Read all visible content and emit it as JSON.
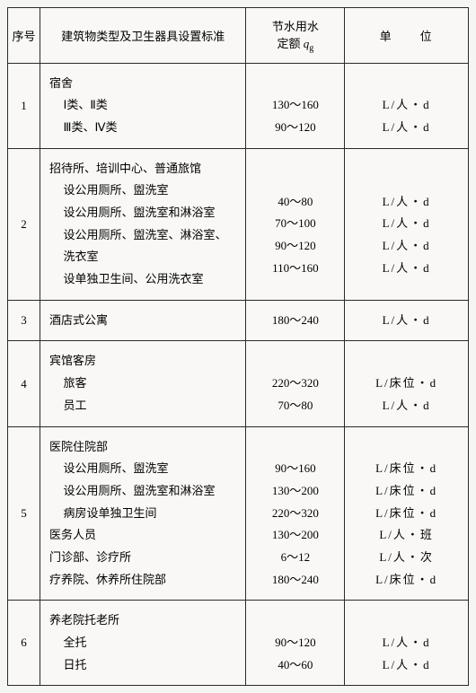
{
  "header": {
    "seq": "序号",
    "desc": "建筑物类型及卫生器具设置标准",
    "val_line1": "节水用水",
    "val_line2_prefix": "定额 ",
    "val_q": "q",
    "val_g": "g",
    "unit": "单　　位"
  },
  "rows": [
    {
      "seq": "1",
      "desc_head": "宿舍",
      "subs": [
        {
          "label": "Ⅰ类、Ⅱ类",
          "val": "130～160",
          "unit": "L/人・d"
        },
        {
          "label": "Ⅲ类、Ⅳ类",
          "val": "90～120",
          "unit": "L/人・d"
        }
      ]
    },
    {
      "seq": "2",
      "desc_head": "招待所、培训中心、普通旅馆",
      "subs": [
        {
          "label": "设公用厕所、盥洗室",
          "val": "40～80",
          "unit": "L/人・d"
        },
        {
          "label": "设公用厕所、盥洗室和淋浴室",
          "val": "70～100",
          "unit": "L/人・d"
        },
        {
          "label": "设公用厕所、盥洗室、淋浴室、洗衣室",
          "val": "90～120",
          "unit": "L/人・d"
        },
        {
          "label": "设单独卫生间、公用洗衣室",
          "val": "110～160",
          "unit": "L/人・d"
        }
      ]
    },
    {
      "seq": "3",
      "desc_head": "酒店式公寓",
      "subs": [],
      "single_val": "180～240",
      "single_unit": "L/人・d"
    },
    {
      "seq": "4",
      "desc_head": "宾馆客房",
      "subs": [
        {
          "label": "旅客",
          "val": "220～320",
          "unit": "L/床位・d"
        },
        {
          "label": "员工",
          "val": "70～80",
          "unit": "L/人・d"
        }
      ]
    },
    {
      "seq": "5",
      "desc_head": "医院住院部",
      "subs": [
        {
          "label": "设公用厕所、盥洗室",
          "val": "90～160",
          "unit": "L/床位・d"
        },
        {
          "label": "设公用厕所、盥洗室和淋浴室",
          "val": "130～200",
          "unit": "L/床位・d"
        },
        {
          "label": "病房设单独卫生间",
          "val": "220～320",
          "unit": "L/床位・d"
        }
      ],
      "extra_tail": [
        {
          "label": "医务人员",
          "val": "130～200",
          "unit": "L/人・班"
        },
        {
          "label": "门诊部、诊疗所",
          "val": "6～12",
          "unit": "L/人・次"
        },
        {
          "label": "疗养院、休养所住院部",
          "val": "180～240",
          "unit": "L/床位・d"
        }
      ]
    },
    {
      "seq": "6",
      "desc_head": "养老院托老所",
      "subs": [
        {
          "label": "全托",
          "val": "90～120",
          "unit": "L/人・d"
        },
        {
          "label": "日托",
          "val": "40～60",
          "unit": "L/人・d"
        }
      ]
    }
  ]
}
